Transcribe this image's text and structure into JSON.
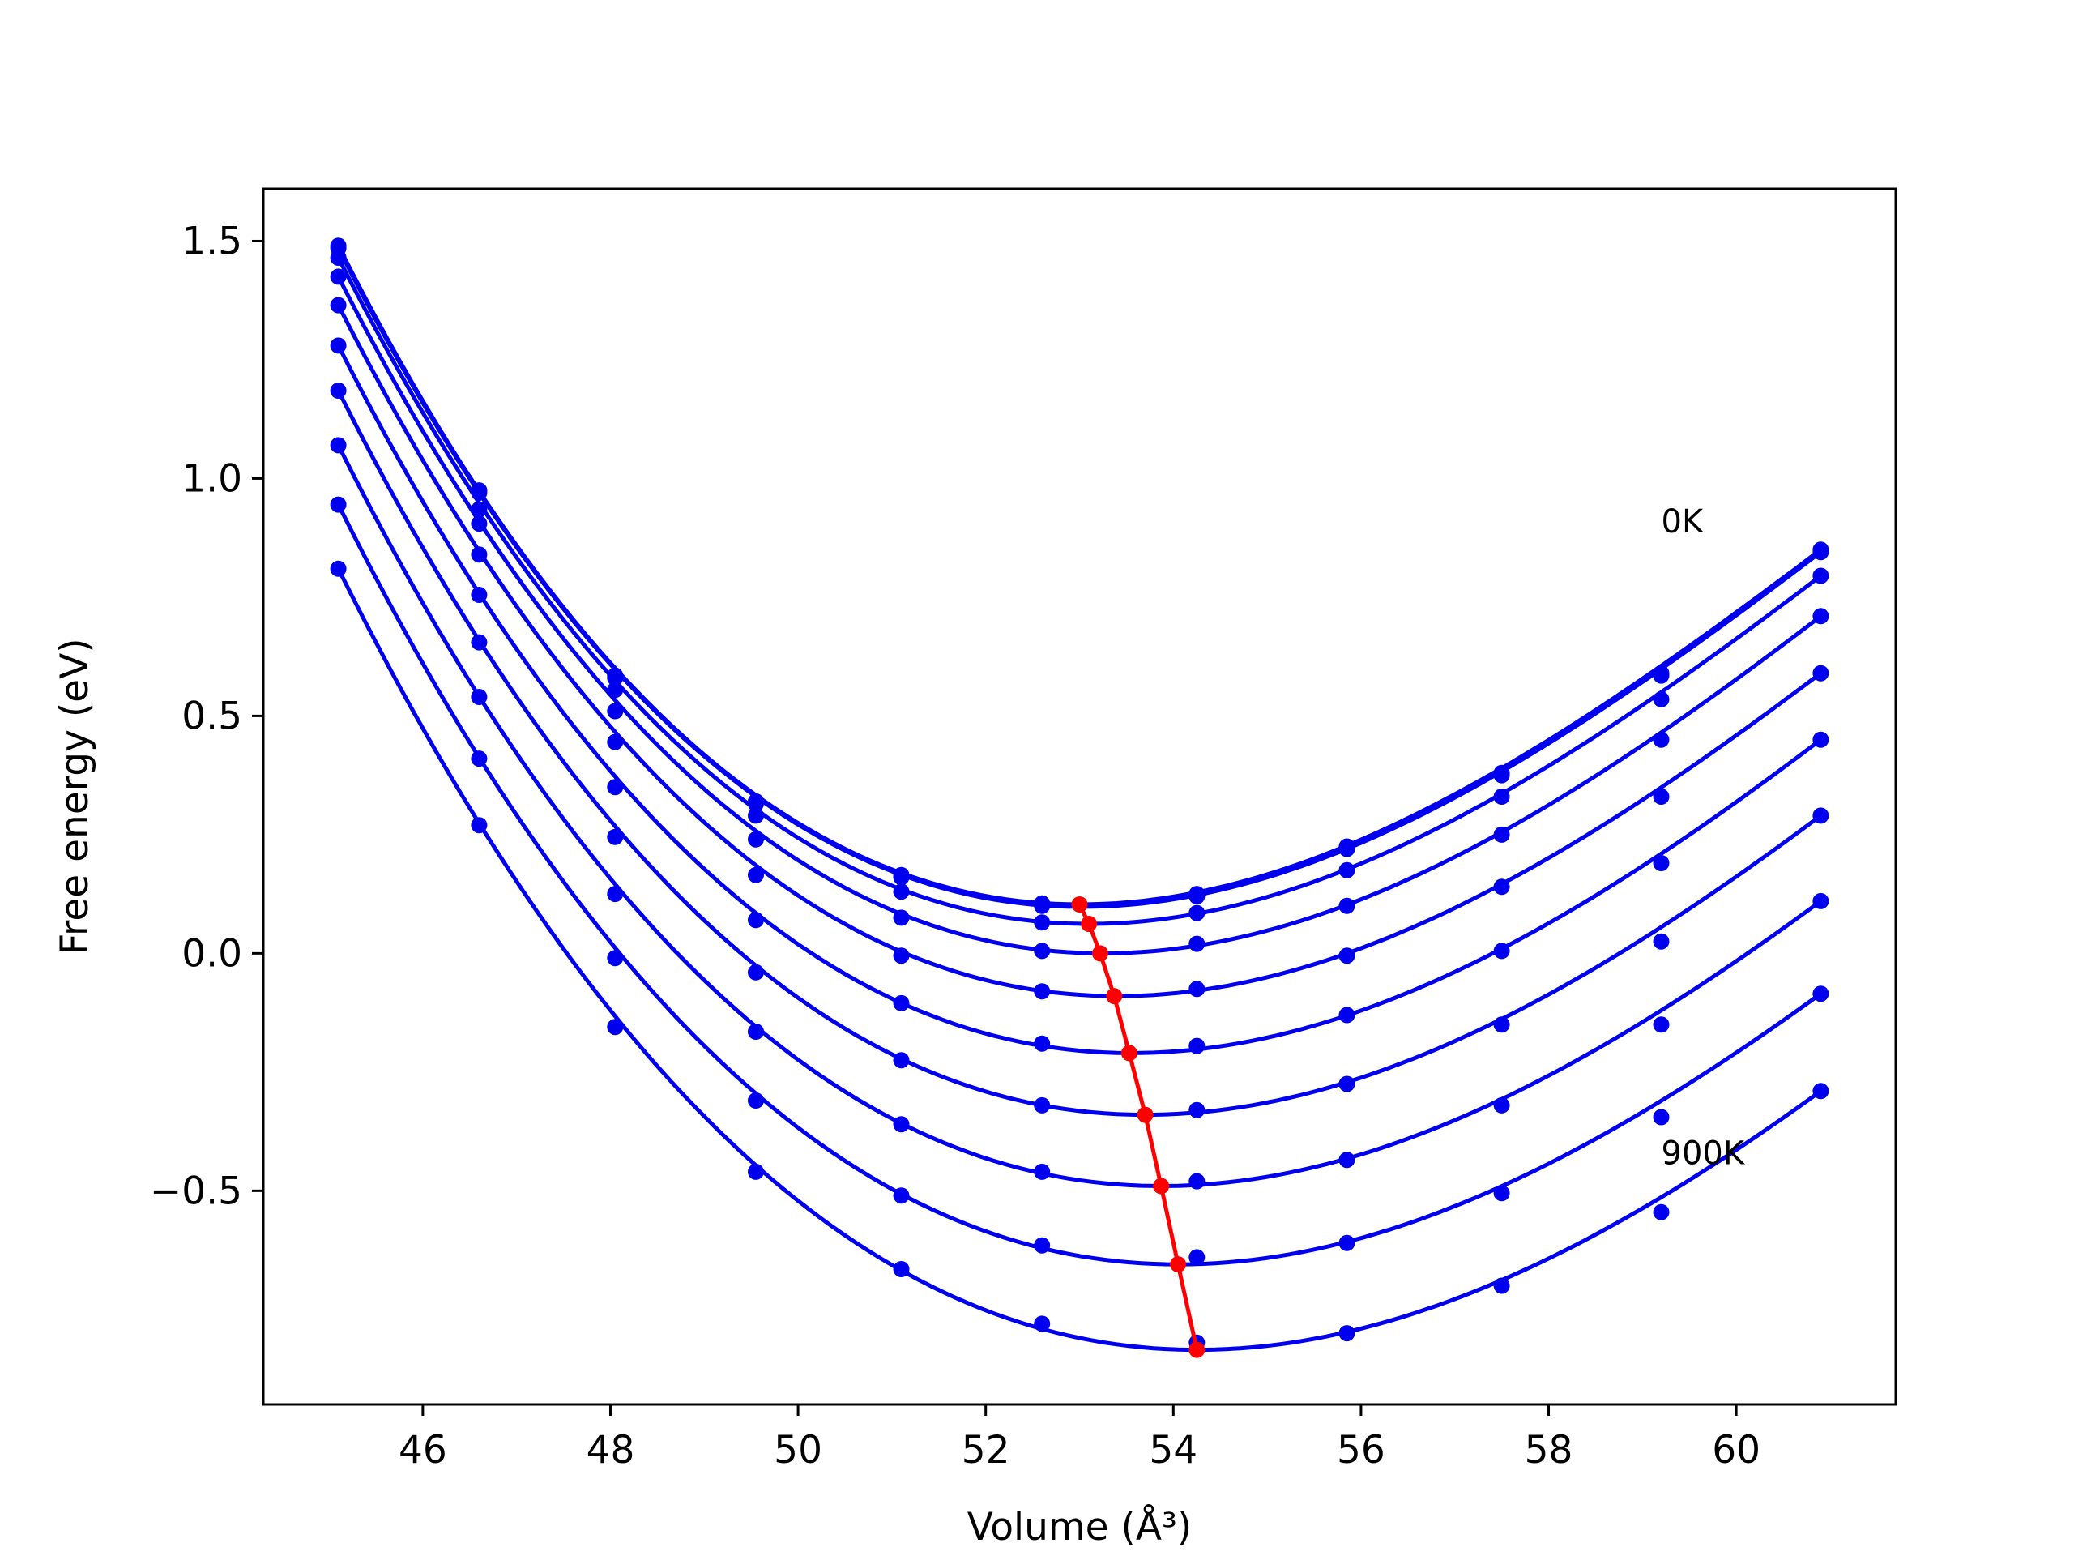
{
  "chart_data": {
    "type": "line",
    "xlabel": "Volume (Å³)",
    "ylabel": "Free energy (eV)",
    "xlim": [
      44.3,
      61.7
    ],
    "ylim": [
      -0.95,
      1.61
    ],
    "xticks": [
      46,
      48,
      50,
      52,
      54,
      56,
      58,
      60
    ],
    "yticks": [
      -0.5,
      0.0,
      0.5,
      1.0,
      1.5
    ],
    "grid": false,
    "legend": "none",
    "annotations": [
      {
        "text": "0K",
        "x": 59.2,
        "y": 0.91
      },
      {
        "text": "900K",
        "x": 59.2,
        "y": -0.42
      }
    ],
    "colors": {
      "series": "#0000ee",
      "min_path": "#ff0000"
    },
    "x": [
      45.1,
      46.6,
      48.05,
      49.55,
      51.1,
      52.6,
      54.25,
      55.85,
      57.5,
      59.2,
      60.9
    ],
    "series": [
      {
        "values": [
          1.49,
          0.975,
          0.585,
          0.32,
          0.165,
          0.105,
          0.125,
          0.225,
          0.38,
          0.59,
          0.85
        ],
        "v0": 53.0,
        "e0": 0.103
      },
      {
        "values": [
          1.485,
          0.97,
          0.58,
          0.315,
          0.16,
          0.1,
          0.12,
          0.22,
          0.375,
          0.585,
          0.845
        ],
        "v0": 53.02,
        "e0": 0.098
      },
      {
        "values": [
          1.465,
          0.935,
          0.555,
          0.29,
          0.13,
          0.065,
          0.085,
          0.175,
          0.33,
          0.535,
          0.795
        ],
        "v0": 53.1,
        "e0": 0.062
      },
      {
        "values": [
          1.425,
          0.905,
          0.51,
          0.24,
          0.075,
          0.005,
          0.02,
          0.1,
          0.25,
          0.45,
          0.71
        ],
        "v0": 53.25,
        "e0": 0.0
      },
      {
        "values": [
          1.365,
          0.84,
          0.445,
          0.165,
          -0.005,
          -0.08,
          -0.075,
          -0.005,
          0.14,
          0.33,
          0.59
        ],
        "v0": 53.4,
        "e0": -0.09
      },
      {
        "values": [
          1.28,
          0.755,
          0.35,
          0.07,
          -0.105,
          -0.19,
          -0.195,
          -0.13,
          0.005,
          0.19,
          0.45
        ],
        "v0": 53.55,
        "e0": -0.21
      },
      {
        "values": [
          1.185,
          0.655,
          0.245,
          -0.04,
          -0.225,
          -0.32,
          -0.33,
          -0.275,
          -0.15,
          0.025,
          0.29
        ],
        "v0": 53.7,
        "e0": -0.34
      },
      {
        "values": [
          1.07,
          0.54,
          0.125,
          -0.165,
          -0.36,
          -0.46,
          -0.48,
          -0.435,
          -0.32,
          -0.15,
          0.11
        ],
        "v0": 53.87,
        "e0": -0.49
      },
      {
        "values": [
          0.945,
          0.41,
          -0.01,
          -0.31,
          -0.51,
          -0.615,
          -0.64,
          -0.61,
          -0.505,
          -0.345,
          -0.085
        ],
        "v0": 54.05,
        "e0": -0.655
      },
      {
        "values": [
          0.81,
          0.27,
          -0.155,
          -0.46,
          -0.665,
          -0.78,
          -0.82,
          -0.8,
          -0.7,
          -0.545,
          -0.29
        ],
        "v0": 54.25,
        "e0": -0.835
      }
    ],
    "min_path": {
      "x": [
        53.0,
        53.1,
        53.22,
        53.37,
        53.53,
        53.7,
        53.87,
        54.05,
        54.25
      ],
      "y": [
        0.103,
        0.062,
        0.0,
        -0.09,
        -0.21,
        -0.34,
        -0.49,
        -0.655,
        -0.835
      ]
    }
  }
}
